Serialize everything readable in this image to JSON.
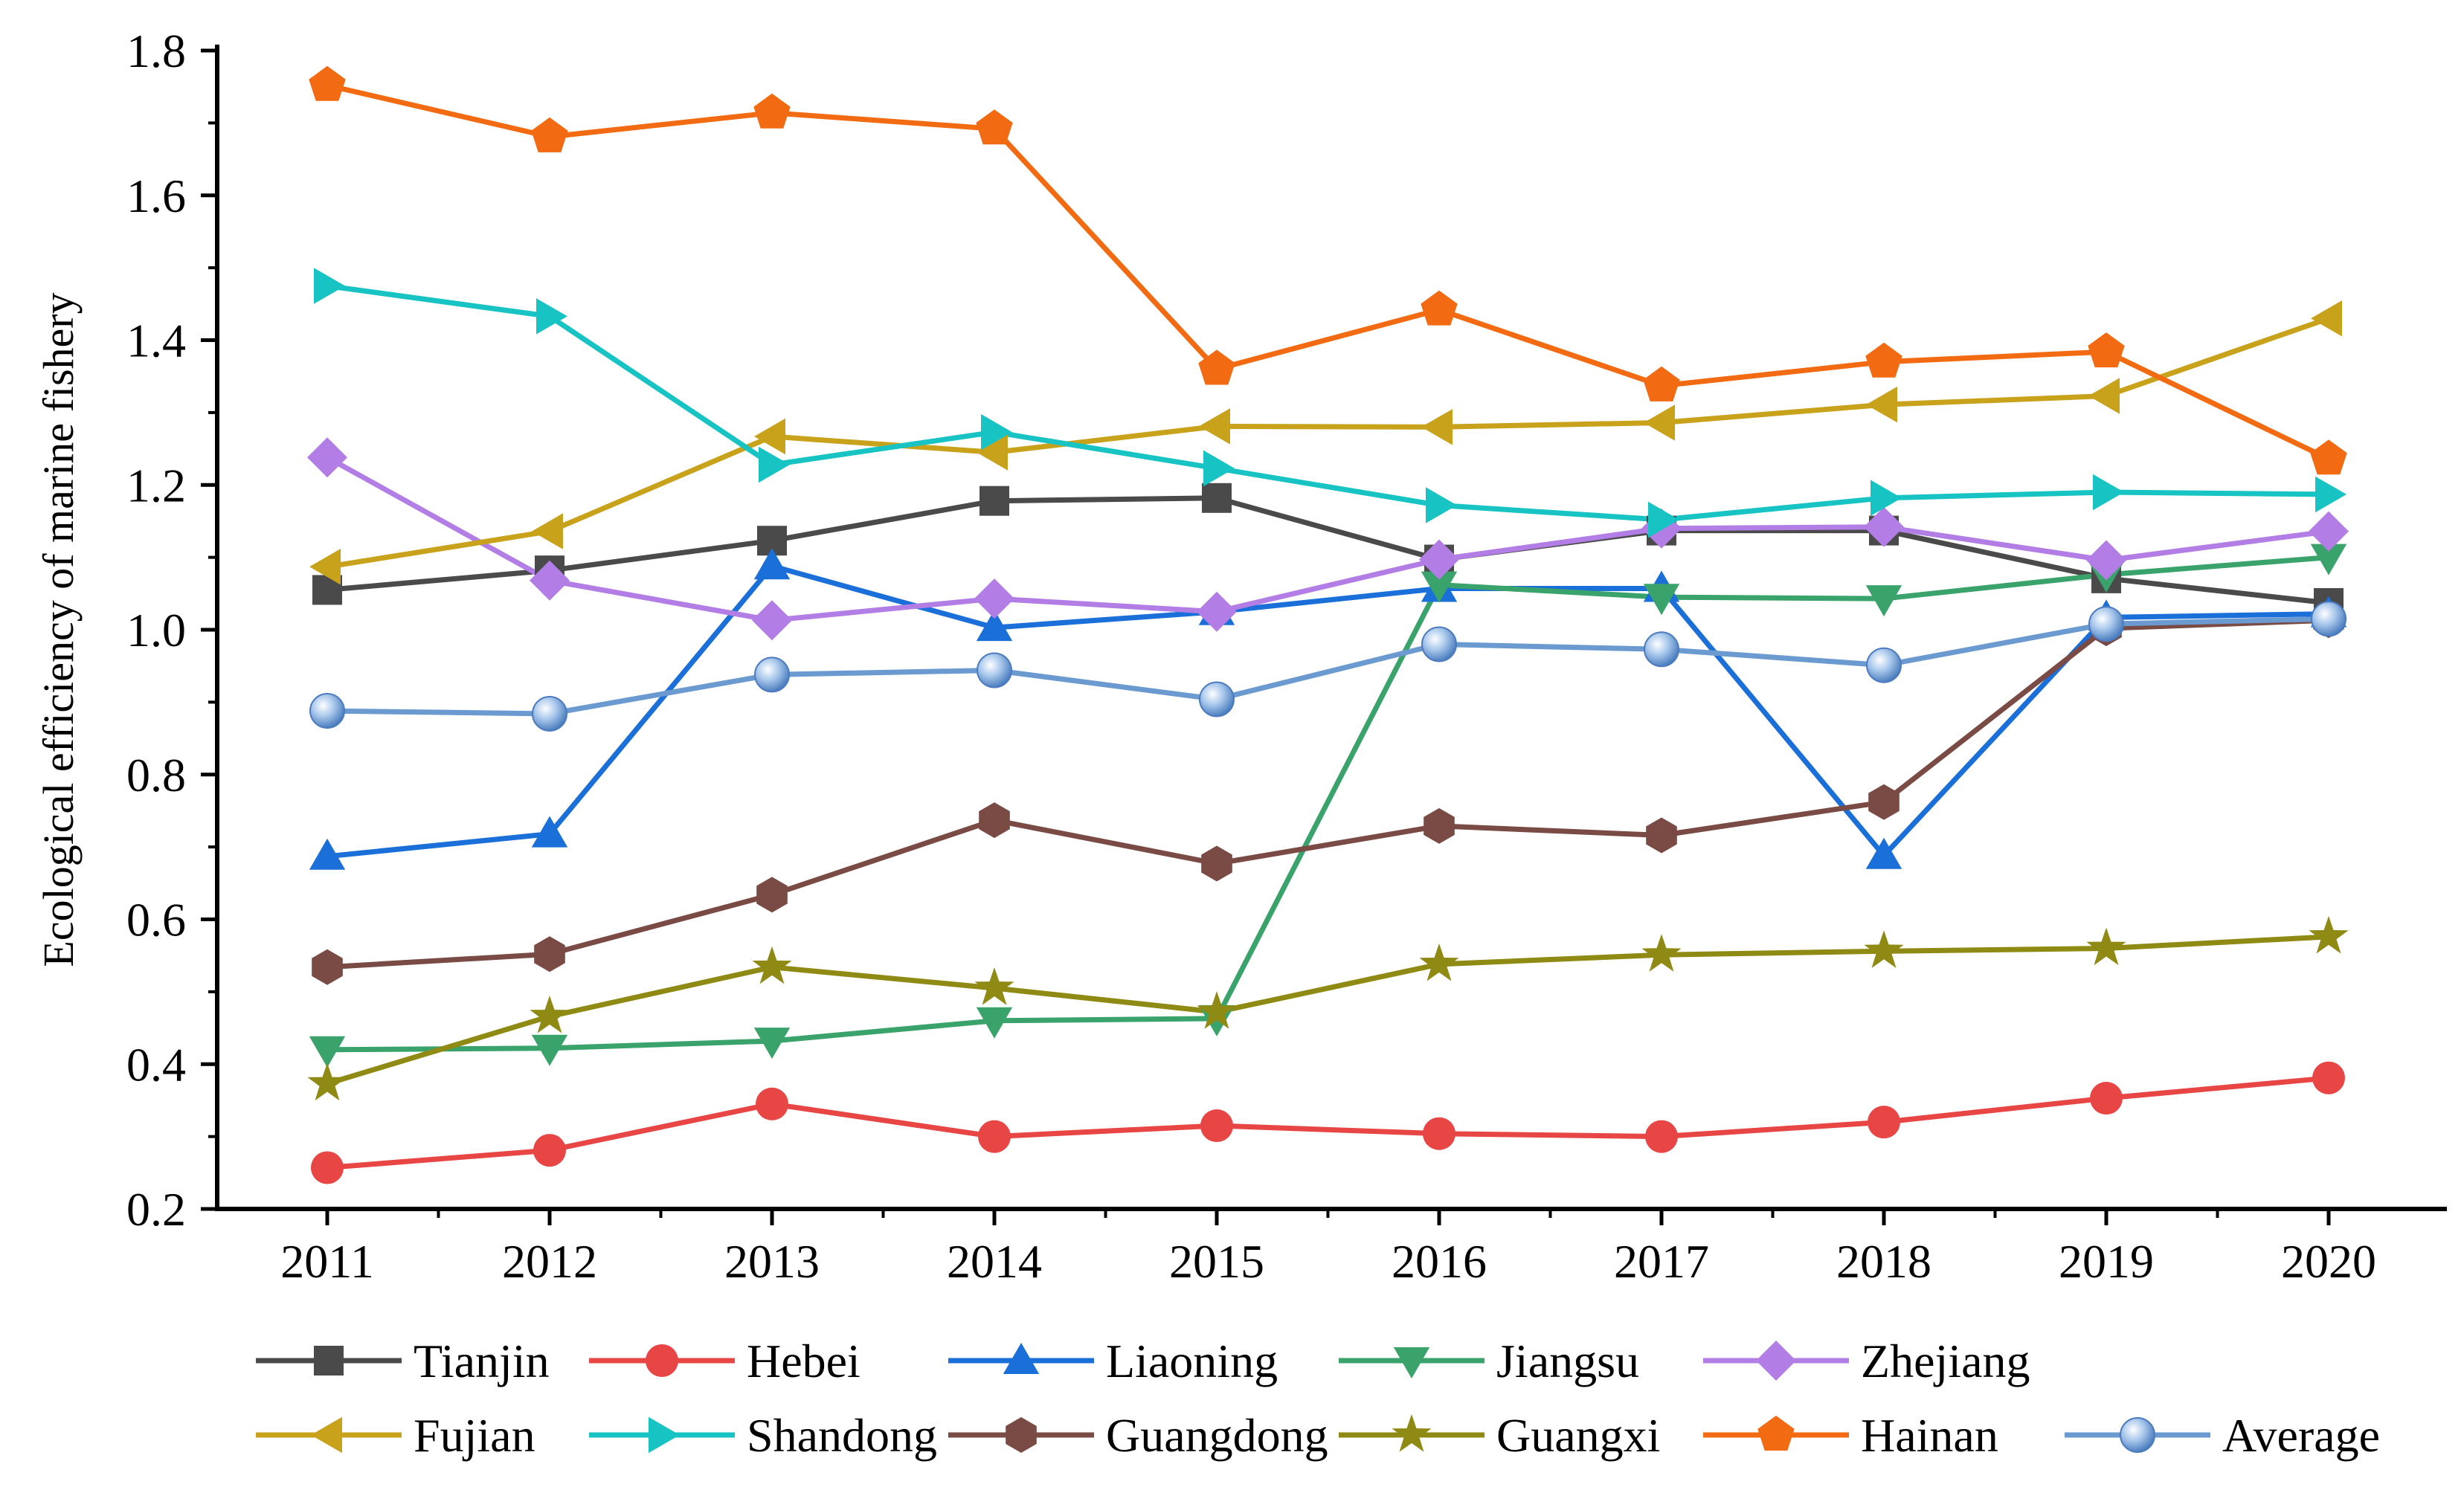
{
  "chart_data": {
    "type": "line",
    "title": "",
    "xlabel": "",
    "ylabel": "Ecological efficiency of marine fishery",
    "ylim": [
      0.2,
      1.8
    ],
    "yticks": [
      "0.2",
      "0.4",
      "0.6",
      "0.8",
      "1.0",
      "1.2",
      "1.4",
      "1.6",
      "1.8"
    ],
    "categories": [
      "2011",
      "2012",
      "2013",
      "2014",
      "2015",
      "2016",
      "2017",
      "2018",
      "2019",
      "2020"
    ],
    "grid": false,
    "legend_position": "bottom",
    "series": [
      {
        "name": "Tianjin",
        "color": "#4a4a4a",
        "marker": "square",
        "values": [
          1.055,
          1.082,
          1.123,
          1.178,
          1.182,
          1.097,
          1.137,
          1.137,
          1.071,
          1.037
        ]
      },
      {
        "name": "Hebei",
        "color": "#e84545",
        "marker": "circle",
        "values": [
          0.257,
          0.281,
          0.345,
          0.3,
          0.315,
          0.304,
          0.3,
          0.32,
          0.353,
          0.381
        ]
      },
      {
        "name": "Liaoning",
        "color": "#1b6fd8",
        "marker": "triangle-up",
        "values": [
          0.687,
          0.718,
          1.088,
          1.003,
          1.025,
          1.057,
          1.057,
          0.688,
          1.017,
          1.022
        ]
      },
      {
        "name": "Jiangsu",
        "color": "#3aa36b",
        "marker": "triangle-down",
        "values": [
          0.42,
          0.422,
          0.432,
          0.46,
          0.463,
          1.062,
          1.045,
          1.043,
          1.076,
          1.1
        ]
      },
      {
        "name": "Zhejiang",
        "color": "#b27ee6",
        "marker": "diamond",
        "values": [
          1.238,
          1.068,
          1.013,
          1.043,
          1.025,
          1.097,
          1.14,
          1.142,
          1.096,
          1.136
        ]
      },
      {
        "name": "Fujian",
        "color": "#c9a21c",
        "marker": "triangle-left",
        "values": [
          1.087,
          1.136,
          1.267,
          1.245,
          1.281,
          1.28,
          1.286,
          1.311,
          1.323,
          1.43
        ]
      },
      {
        "name": "Shandong",
        "color": "#17c3c3",
        "marker": "triangle-right",
        "values": [
          1.475,
          1.433,
          1.228,
          1.273,
          1.223,
          1.172,
          1.152,
          1.182,
          1.19,
          1.187
        ]
      },
      {
        "name": "Guangdong",
        "color": "#7a4a44",
        "marker": "hexagon",
        "values": [
          0.534,
          0.552,
          0.634,
          0.737,
          0.677,
          0.729,
          0.716,
          0.762,
          1.002,
          1.013
        ]
      },
      {
        "name": "Guangxi",
        "color": "#8f8a13",
        "marker": "star",
        "values": [
          0.373,
          0.466,
          0.534,
          0.505,
          0.472,
          0.538,
          0.551,
          0.556,
          0.56,
          0.576
        ]
      },
      {
        "name": "Hainan",
        "color": "#f26a11",
        "marker": "pentagon",
        "values": [
          1.752,
          1.681,
          1.714,
          1.692,
          1.36,
          1.442,
          1.337,
          1.37,
          1.384,
          1.236
        ]
      },
      {
        "name": "Average",
        "color": "#6a9ad0",
        "marker": "sphere",
        "values": [
          0.888,
          0.884,
          0.938,
          0.944,
          0.904,
          0.98,
          0.973,
          0.951,
          1.008,
          1.015
        ]
      }
    ]
  }
}
